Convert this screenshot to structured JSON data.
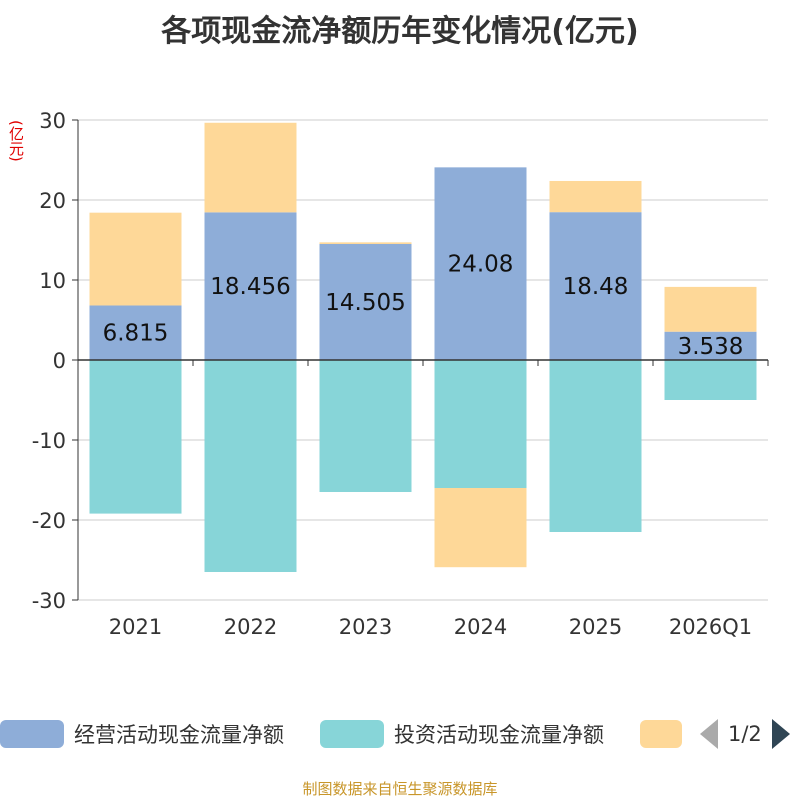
{
  "title": "各项现金流净额历年变化情况(亿元)",
  "unit_label": "(亿元)",
  "source": "制图数据来自恒生聚源数据库",
  "pager": {
    "text": "1/2"
  },
  "colors": {
    "operating": "#8eadd8",
    "investing": "#87d5d8",
    "financing": "#fed898",
    "grid": "#cccccc",
    "axis": "#333333"
  },
  "chart_data": {
    "type": "bar",
    "stacked": true,
    "categories": [
      "2021",
      "2022",
      "2023",
      "2024",
      "2025",
      "2026Q1"
    ],
    "ylim": [
      -30,
      30
    ],
    "yticks": [
      30,
      20,
      10,
      0,
      -10,
      -20,
      -30
    ],
    "grid": true,
    "legend_position": "bottom",
    "series": [
      {
        "name": "经营活动现金流量净额",
        "color": "#8eadd8",
        "values": [
          6.815,
          18.456,
          14.505,
          24.08,
          18.48,
          3.538
        ],
        "labels": [
          "6.815",
          "18.456",
          "14.505",
          "24.08",
          "18.48",
          "3.538"
        ]
      },
      {
        "name": "投资活动现金流量净额",
        "color": "#87d5d8",
        "values": [
          -19.2,
          -26.5,
          -16.5,
          -16.0,
          -21.5,
          -5.0
        ]
      },
      {
        "name": "",
        "color": "#fed898",
        "values": [
          11.6,
          11.2,
          0.2,
          -9.9,
          3.9,
          5.6
        ]
      }
    ]
  }
}
